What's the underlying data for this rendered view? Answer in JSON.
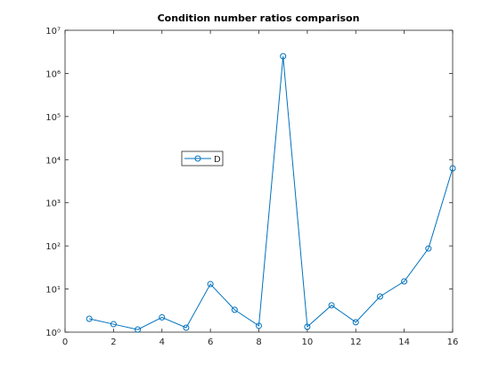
{
  "chart_data": {
    "type": "line",
    "title": "Condition number ratios comparison",
    "x": [
      1,
      2,
      3,
      4,
      5,
      6,
      7,
      8,
      9,
      10,
      11,
      12,
      13,
      14,
      15,
      16
    ],
    "series": [
      {
        "name": "D",
        "color": "#0072BD",
        "values": [
          2.04,
          1.53,
          1.15,
          2.2,
          1.27,
          13,
          3.3,
          1.4,
          2500000,
          1.33,
          4.2,
          1.7,
          6.7,
          15,
          87,
          6300
        ]
      }
    ],
    "xlim": [
      0,
      16
    ],
    "xticks": [
      0,
      2,
      4,
      6,
      8,
      10,
      12,
      14,
      16
    ],
    "ylim": [
      1,
      10000000
    ],
    "ylog": true,
    "yticks": [
      {
        "value": 1,
        "label": "10⁰"
      },
      {
        "value": 10,
        "label": "10¹"
      },
      {
        "value": 100,
        "label": "10²"
      },
      {
        "value": 1000,
        "label": "10³"
      },
      {
        "value": 10000,
        "label": "10⁴"
      },
      {
        "value": 100000,
        "label": "10⁵"
      },
      {
        "value": 1000000,
        "label": "10⁶"
      },
      {
        "value": 10000000,
        "label": "10⁷"
      }
    ],
    "grid": false,
    "marker": "circle"
  }
}
